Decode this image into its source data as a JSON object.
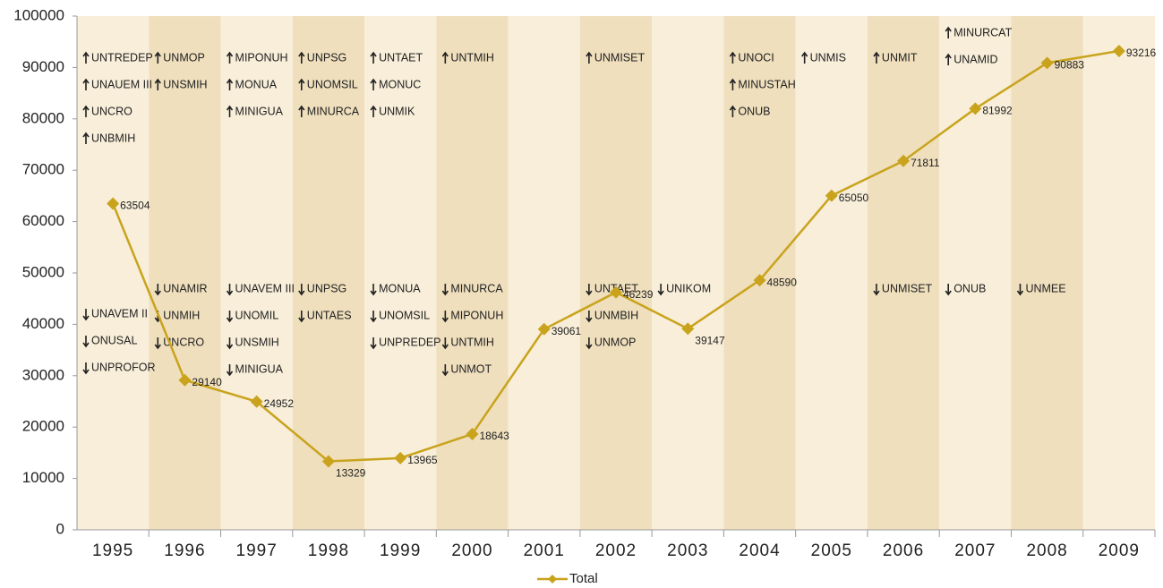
{
  "chart_data": {
    "type": "line",
    "categories": [
      "1995",
      "1996",
      "1997",
      "1998",
      "1999",
      "2000",
      "2001",
      "2002",
      "2003",
      "2004",
      "2005",
      "2006",
      "2007",
      "2008",
      "2009"
    ],
    "series": [
      {
        "name": "Total",
        "color": "#c9a31c",
        "values": [
          63504,
          29140,
          24952,
          13329,
          13965,
          18643,
          39061,
          46239,
          39147,
          48590,
          65050,
          71811,
          81992,
          90883,
          93216
        ]
      }
    ],
    "ylim": [
      0,
      100000
    ],
    "yticks": [
      0,
      10000,
      20000,
      30000,
      40000,
      50000,
      60000,
      70000,
      80000,
      90000,
      100000
    ],
    "band_colors": [
      "#f8eed9",
      "#efdfbd"
    ],
    "legend": "bottom",
    "annotations": [
      {
        "up": [
          "UNTREDEP",
          "UNAUEM III",
          "UNCRO",
          "UNBMIH"
        ],
        "down": [
          "UNAVEM II",
          "ONUSAL",
          "UNPROFOR"
        ]
      },
      {
        "up": [
          "UNMOP",
          "UNSMIH"
        ],
        "down": [
          "UNAMIR",
          "UNMIH",
          "UNCRO"
        ]
      },
      {
        "up": [
          "MIPONUH",
          "MONUA",
          "MINIGUA"
        ],
        "down": [
          "UNAVEM III",
          "UNOMIL",
          "UNSMIH",
          "MINIGUA"
        ]
      },
      {
        "up": [
          "UNPSG",
          "UNOMSIL",
          "MINURCA"
        ],
        "down": [
          "UNPSG",
          "UNTAES"
        ]
      },
      {
        "up": [
          "UNTAET",
          "MONUC",
          "UNMIK"
        ],
        "down": [
          "MONUA",
          "UNOMSIL",
          "UNPREDEP"
        ]
      },
      {
        "up": [
          "UNTMIH"
        ],
        "down": [
          "MINURCA",
          "MIPONUH",
          "UNTMIH",
          "UNMOT"
        ]
      },
      {
        "up": [],
        "down": []
      },
      {
        "up": [
          "UNMISET"
        ],
        "down": [
          "UNTAET",
          "UNMBIH",
          "UNMOP"
        ]
      },
      {
        "up": [],
        "down": [
          "UNIKOM"
        ]
      },
      {
        "up": [
          "UNOCI",
          "MINUSTAH",
          "ONUB"
        ],
        "down": []
      },
      {
        "up": [
          "UNMIS"
        ],
        "down": []
      },
      {
        "up": [
          "UNMIT"
        ],
        "down": [
          "UNMISET"
        ]
      },
      {
        "up": [
          "MINURCAT",
          "UNAMID"
        ],
        "down": [
          "ONUB"
        ]
      },
      {
        "up": [],
        "down": [
          "UNMEE"
        ]
      },
      {
        "up": [],
        "down": []
      }
    ]
  }
}
